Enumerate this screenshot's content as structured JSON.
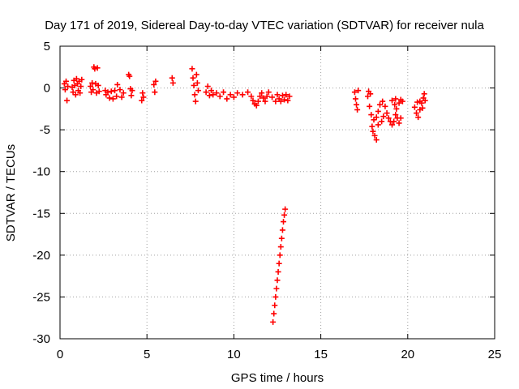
{
  "chart_data": {
    "type": "scatter",
    "title": "Day 171 of 2019, Sidereal Day-to-day VTEC variation (SDTVAR) for receiver nula",
    "xlabel": "GPS time / hours",
    "ylabel": "SDTVAR / TECUs",
    "xlim": [
      0,
      25
    ],
    "ylim": [
      -30,
      5
    ],
    "xticks": [
      0,
      5,
      10,
      15,
      20,
      25
    ],
    "yticks": [
      5,
      0,
      -5,
      -10,
      -15,
      -20,
      -25,
      -30
    ],
    "grid": true,
    "legend": "none",
    "marker": "plus",
    "color": "#ff0000",
    "series": [
      {
        "points": [
          [
            0.25,
            0.5
          ],
          [
            0.3,
            -0.2
          ],
          [
            0.35,
            0.8
          ],
          [
            0.4,
            -1.5
          ],
          [
            0.45,
            0.2
          ],
          [
            0.7,
            0.1
          ],
          [
            0.75,
            -0.5
          ],
          [
            0.8,
            0.9
          ],
          [
            0.85,
            0.3
          ],
          [
            0.9,
            -0.8
          ],
          [
            0.95,
            1.1
          ],
          [
            1.0,
            0.5
          ],
          [
            1.05,
            -0.3
          ],
          [
            1.1,
            0.8
          ],
          [
            1.15,
            -0.6
          ],
          [
            1.2,
            0.2
          ],
          [
            1.25,
            1.0
          ],
          [
            1.75,
            0.2
          ],
          [
            1.8,
            -0.5
          ],
          [
            1.85,
            0.6
          ],
          [
            1.9,
            -0.2
          ],
          [
            1.95,
            2.5
          ],
          [
            2.0,
            2.3
          ],
          [
            2.05,
            0.5
          ],
          [
            2.1,
            -0.6
          ],
          [
            2.15,
            2.4
          ],
          [
            2.2,
            0.3
          ],
          [
            2.25,
            -0.4
          ],
          [
            2.6,
            -0.3
          ],
          [
            2.65,
            -0.8
          ],
          [
            2.75,
            -0.5
          ],
          [
            2.85,
            -1.2
          ],
          [
            2.95,
            -0.4
          ],
          [
            3.05,
            -1.3
          ],
          [
            3.15,
            -0.3
          ],
          [
            3.25,
            -1.0
          ],
          [
            3.3,
            0.4
          ],
          [
            3.45,
            -0.2
          ],
          [
            3.55,
            -1.1
          ],
          [
            3.65,
            -0.6
          ],
          [
            3.95,
            1.6
          ],
          [
            4.0,
            1.4
          ],
          [
            4.05,
            -0.1
          ],
          [
            4.1,
            -0.9
          ],
          [
            4.15,
            -0.3
          ],
          [
            4.7,
            -1.5
          ],
          [
            4.75,
            -0.6
          ],
          [
            4.8,
            -1.1
          ],
          [
            5.4,
            0.4
          ],
          [
            5.45,
            -0.5
          ],
          [
            5.5,
            0.8
          ],
          [
            6.45,
            1.2
          ],
          [
            6.5,
            0.6
          ],
          [
            7.6,
            2.3
          ],
          [
            7.65,
            1.2
          ],
          [
            7.7,
            0.3
          ],
          [
            7.75,
            -0.8
          ],
          [
            7.8,
            -1.6
          ],
          [
            7.85,
            1.6
          ],
          [
            7.9,
            0.6
          ],
          [
            7.95,
            -0.3
          ],
          [
            8.4,
            -0.5
          ],
          [
            8.5,
            0.2
          ],
          [
            8.6,
            -0.9
          ],
          [
            8.7,
            -0.3
          ],
          [
            8.8,
            -0.8
          ],
          [
            9.0,
            -0.6
          ],
          [
            9.2,
            -1.0
          ],
          [
            9.4,
            -0.5
          ],
          [
            9.6,
            -1.3
          ],
          [
            9.8,
            -0.8
          ],
          [
            10.0,
            -1.1
          ],
          [
            10.2,
            -0.6
          ],
          [
            10.5,
            -0.8
          ],
          [
            10.8,
            -0.5
          ],
          [
            11.0,
            -1.0
          ],
          [
            11.1,
            -1.5
          ],
          [
            11.2,
            -1.9
          ],
          [
            11.3,
            -2.1
          ],
          [
            11.4,
            -1.6
          ],
          [
            11.5,
            -1.0
          ],
          [
            11.6,
            -0.6
          ],
          [
            11.7,
            -1.2
          ],
          [
            11.8,
            -1.6
          ],
          [
            11.9,
            -1.0
          ],
          [
            12.0,
            -0.5
          ],
          [
            12.2,
            -1.1
          ],
          [
            12.4,
            -1.6
          ],
          [
            12.5,
            -0.8
          ],
          [
            12.6,
            -1.3
          ],
          [
            12.7,
            -1.6
          ],
          [
            12.8,
            -0.9
          ],
          [
            12.9,
            -1.4
          ],
          [
            13.0,
            -0.8
          ],
          [
            13.1,
            -1.5
          ],
          [
            13.2,
            -1.0
          ],
          [
            12.25,
            -28.0
          ],
          [
            12.3,
            -27.0
          ],
          [
            12.35,
            -26.0
          ],
          [
            12.4,
            -25.0
          ],
          [
            12.45,
            -24.0
          ],
          [
            12.5,
            -23.0
          ],
          [
            12.55,
            -22.0
          ],
          [
            12.6,
            -21.0
          ],
          [
            12.65,
            -20.0
          ],
          [
            12.7,
            -19.0
          ],
          [
            12.75,
            -18.0
          ],
          [
            12.8,
            -17.0
          ],
          [
            12.85,
            -16.0
          ],
          [
            12.9,
            -15.2
          ],
          [
            12.95,
            -14.5
          ],
          [
            16.95,
            -0.5
          ],
          [
            17.0,
            -1.3
          ],
          [
            17.05,
            -2.0
          ],
          [
            17.1,
            -2.6
          ],
          [
            17.15,
            -0.3
          ],
          [
            17.7,
            -1.0
          ],
          [
            17.8,
            -2.2
          ],
          [
            17.9,
            -3.2
          ],
          [
            17.95,
            -4.6
          ],
          [
            18.0,
            -5.2
          ],
          [
            18.1,
            -5.7
          ],
          [
            18.2,
            -6.2
          ],
          [
            17.75,
            -0.4
          ],
          [
            17.85,
            -0.7
          ],
          [
            18.05,
            -3.8
          ],
          [
            18.2,
            -3.5
          ],
          [
            18.3,
            -2.8
          ],
          [
            18.4,
            -2.0
          ],
          [
            18.55,
            -1.6
          ],
          [
            18.7,
            -2.2
          ],
          [
            18.8,
            -3.0
          ],
          [
            18.9,
            -3.6
          ],
          [
            19.0,
            -4.0
          ],
          [
            19.1,
            -4.4
          ],
          [
            19.2,
            -4.0
          ],
          [
            19.3,
            -3.2
          ],
          [
            19.35,
            -2.5
          ],
          [
            19.25,
            -2.0
          ],
          [
            19.1,
            -1.5
          ],
          [
            19.3,
            -1.3
          ],
          [
            19.5,
            -1.8
          ],
          [
            19.6,
            -1.4
          ],
          [
            19.7,
            -1.6
          ],
          [
            19.4,
            -3.6
          ],
          [
            19.5,
            -4.2
          ],
          [
            19.6,
            -3.6
          ],
          [
            18.6,
            -3.4
          ],
          [
            18.5,
            -4.0
          ],
          [
            18.3,
            -4.4
          ],
          [
            20.4,
            -2.3
          ],
          [
            20.5,
            -3.0
          ],
          [
            20.6,
            -3.5
          ],
          [
            20.7,
            -2.6
          ],
          [
            20.8,
            -1.8
          ],
          [
            20.9,
            -1.2
          ],
          [
            20.95,
            -0.7
          ],
          [
            21.0,
            -1.5
          ],
          [
            20.7,
            -1.6
          ],
          [
            20.85,
            -2.4
          ],
          [
            20.55,
            -1.7
          ]
        ]
      }
    ]
  }
}
